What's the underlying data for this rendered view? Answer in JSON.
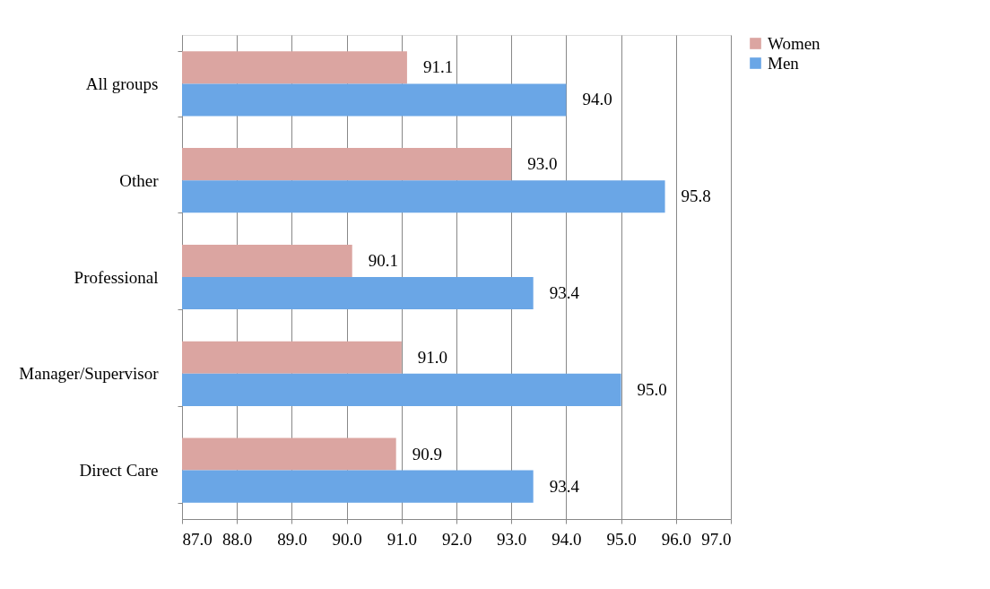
{
  "chart_data": {
    "type": "bar",
    "orientation": "horizontal",
    "categories": [
      "All groups",
      "Other",
      "Professional",
      "Manager/Supervisor",
      "Direct Care"
    ],
    "series": [
      {
        "name": "Women",
        "color": "#dba5a1",
        "values": [
          91.1,
          93.0,
          90.1,
          91.0,
          90.9
        ],
        "value_labels": [
          "91.1",
          "93.0",
          "90.1",
          "91.0",
          "90.9"
        ]
      },
      {
        "name": "Men",
        "color": "#6aa6e6",
        "values": [
          94.0,
          95.8,
          93.4,
          95.0,
          93.4
        ],
        "value_labels": [
          "94.0",
          "95.8",
          "93.4",
          "95.0",
          "93.4"
        ]
      }
    ],
    "xlim": [
      87,
      97
    ],
    "xticks": [
      {
        "value": 87,
        "label": "87.0"
      },
      {
        "value": 88,
        "label": "88.0"
      },
      {
        "value": 89,
        "label": "89.0"
      },
      {
        "value": 90,
        "label": "90.0"
      },
      {
        "value": 91,
        "label": "91.0"
      },
      {
        "value": 92,
        "label": "92.0"
      },
      {
        "value": 93,
        "label": "93.0"
      },
      {
        "value": 94,
        "label": "94.0"
      },
      {
        "value": 95,
        "label": "95.0"
      },
      {
        "value": 96,
        "label": "96.0"
      },
      {
        "value": 97,
        "label": "97.0"
      }
    ],
    "grid": "x",
    "legend": "right"
  }
}
